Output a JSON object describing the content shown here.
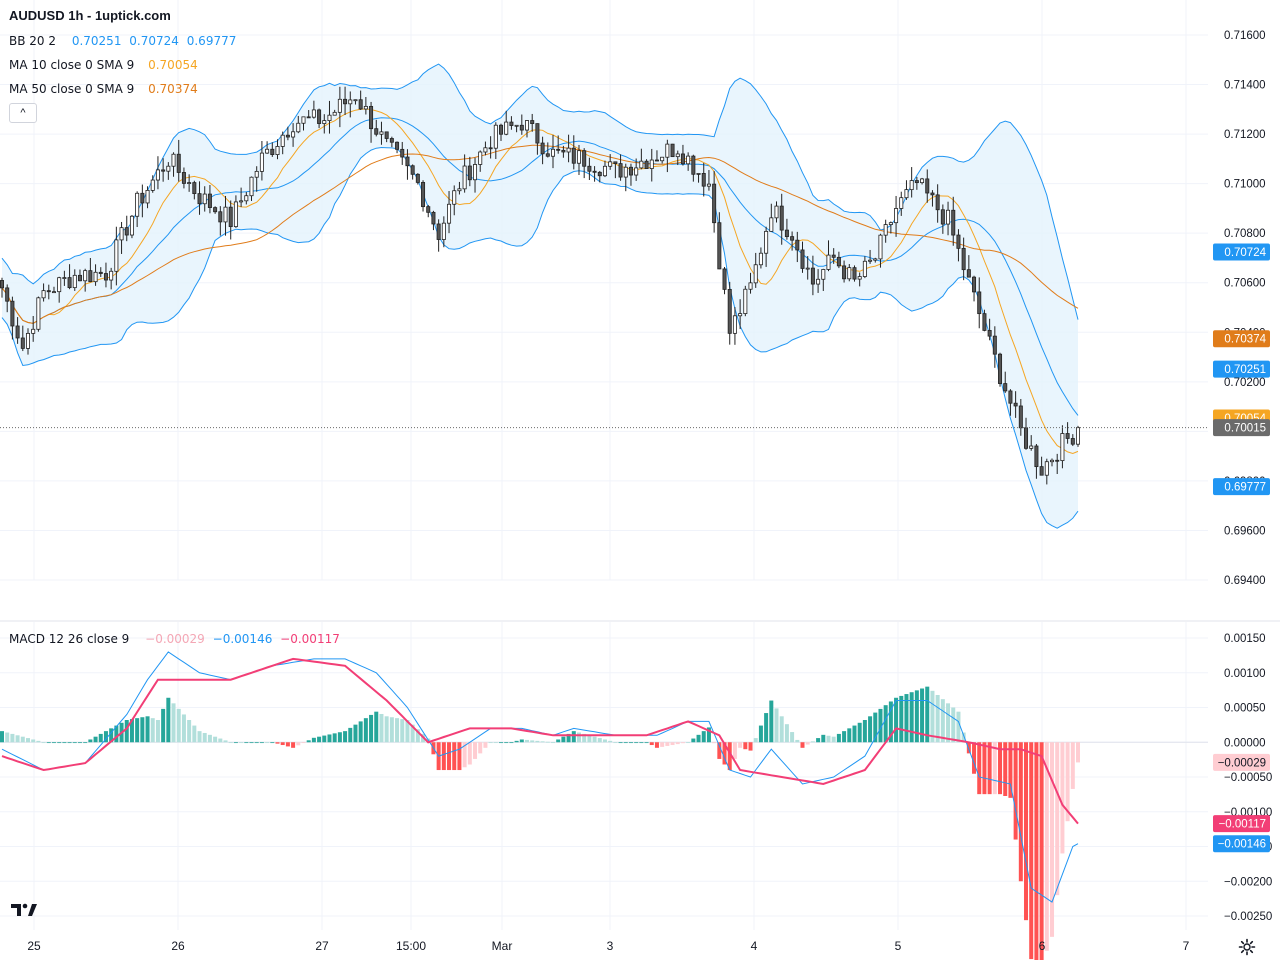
{
  "header": {
    "title": "AUDUSD 1h - 1uptick.com",
    "bb_label": "BB 20 2",
    "bb_values": [
      "0.70251",
      "0.70724",
      "0.69777"
    ],
    "ma10_label": "MA 10 close 0 SMA 9",
    "ma10_value": "0.70054",
    "ma50_label": "MA 50 close 0 SMA 9",
    "ma50_value": "0.70374",
    "collapse_glyph": "^"
  },
  "macd_legend": {
    "label": "MACD 12 26 close 9",
    "values": [
      "−0.00029",
      "−0.00146",
      "−0.00117"
    ]
  },
  "colors": {
    "bull": "#ffffff",
    "bear": "#555555",
    "wick": "#222222",
    "bb": "#2196f3",
    "bb_fill": "#e3f2fd",
    "ma10": "#f5a623",
    "ma50": "#e07c1a",
    "macd_line": "#2196f3",
    "signal_line": "#f23e76",
    "hist_up_strong": "#26a69a",
    "hist_up_weak": "#b2dfdb",
    "hist_dn_strong": "#ff5252",
    "hist_dn_weak": "#ffcdd2"
  },
  "icons": {
    "logo": "tradingview-logo-icon",
    "settings": "gear-icon",
    "collapse": "chevron-up-icon"
  },
  "chart_data": [
    {
      "type": "candlestick",
      "title": "AUDUSD 1h - 1uptick.com",
      "ylim": [
        0.693,
        0.7165
      ],
      "y_ticks": [
        "0.71600",
        "0.71400",
        "0.71200",
        "0.71000",
        "0.70800",
        "0.70600",
        "0.70400",
        "0.70200",
        "0.70000",
        "0.69800",
        "0.69600",
        "0.69400"
      ],
      "x_ticks": [
        "25",
        "26",
        "27",
        "15:00",
        "Mar",
        "3",
        "4",
        "5",
        "6",
        "7"
      ],
      "price_labels": [
        {
          "value": "0.70724",
          "price": 0.70724,
          "color": "#2196f3"
        },
        {
          "value": "0.70374",
          "price": 0.70374,
          "color": "#e07c1a"
        },
        {
          "value": "0.70251",
          "price": 0.70251,
          "color": "#2196f3"
        },
        {
          "value": "0.70054",
          "price": 0.70054,
          "color": "#f5a623"
        },
        {
          "value": "0.70015",
          "price": 0.70015,
          "color": "#6b6b6b"
        },
        {
          "value": "0.69777",
          "price": 0.69777,
          "color": "#2196f3"
        }
      ],
      "last_price": 0.70015,
      "bars": 208,
      "close_path": [
        [
          0,
          0.7058
        ],
        [
          4,
          0.7034
        ],
        [
          8,
          0.7056
        ],
        [
          14,
          0.7063
        ],
        [
          20,
          0.7064
        ],
        [
          26,
          0.7092
        ],
        [
          32,
          0.711
        ],
        [
          38,
          0.7095
        ],
        [
          44,
          0.7085
        ],
        [
          50,
          0.711
        ],
        [
          56,
          0.7125
        ],
        [
          62,
          0.7126
        ],
        [
          68,
          0.7136
        ],
        [
          74,
          0.7115
        ],
        [
          80,
          0.71
        ],
        [
          84,
          0.708
        ],
        [
          88,
          0.71
        ],
        [
          94,
          0.7118
        ],
        [
          100,
          0.7125
        ],
        [
          106,
          0.7112
        ],
        [
          112,
          0.711
        ],
        [
          118,
          0.7105
        ],
        [
          124,
          0.711
        ],
        [
          130,
          0.7115
        ],
        [
          136,
          0.71
        ],
        [
          140,
          0.704
        ],
        [
          144,
          0.7058
        ],
        [
          148,
          0.709
        ],
        [
          152,
          0.708
        ],
        [
          156,
          0.706
        ],
        [
          160,
          0.707
        ],
        [
          164,
          0.706
        ],
        [
          168,
          0.707
        ],
        [
          172,
          0.709
        ],
        [
          176,
          0.71
        ],
        [
          182,
          0.7085
        ],
        [
          186,
          0.706
        ],
        [
          190,
          0.7035
        ],
        [
          196,
          0.7
        ],
        [
          200,
          0.6985
        ],
        [
          204,
          0.6995
        ],
        [
          207,
          0.7001
        ]
      ]
    },
    {
      "type": "line",
      "title": "MACD 12 26 close 9",
      "ylim": [
        -0.0026,
        0.0017
      ],
      "y_ticks": [
        "0.00150",
        "0.00100",
        "0.00050",
        "0.00000",
        "−0.00050",
        "−0.00100",
        "−0.00150",
        "−0.00200",
        "−0.00250"
      ],
      "price_labels": [
        {
          "value": "−0.00029",
          "price": -0.00029,
          "color": "#ffcdd2",
          "text_color": "#131722"
        },
        {
          "value": "−0.00117",
          "price": -0.00117,
          "color": "#f23e76",
          "text_color": "#ffffff"
        },
        {
          "value": "−0.00146",
          "price": -0.00146,
          "color": "#2196f3",
          "text_color": "#ffffff"
        }
      ],
      "series": [
        {
          "name": "MACD",
          "points": [
            [
              0,
              -0.0001
            ],
            [
              8,
              -0.0004
            ],
            [
              16,
              -0.0003
            ],
            [
              24,
              0.0004
            ],
            [
              28,
              0.0009
            ],
            [
              32,
              0.0013
            ],
            [
              38,
              0.001
            ],
            [
              44,
              0.0009
            ],
            [
              52,
              0.0011
            ],
            [
              60,
              0.0012
            ],
            [
              66,
              0.0012
            ],
            [
              72,
              0.001
            ],
            [
              78,
              0.0005
            ],
            [
              84,
              -0.0002
            ],
            [
              88,
              -0.0001
            ],
            [
              94,
              0.0002
            ],
            [
              100,
              0.0002
            ],
            [
              106,
              0.0001
            ],
            [
              110,
              0.0002
            ],
            [
              118,
              0.0001
            ],
            [
              126,
              0.0001
            ],
            [
              132,
              0.0003
            ],
            [
              136,
              0.0003
            ],
            [
              140,
              -0.0004
            ],
            [
              144,
              -0.0005
            ],
            [
              148,
              -0.0001
            ],
            [
              154,
              -0.0006
            ],
            [
              160,
              -0.0005
            ],
            [
              166,
              -0.0002
            ],
            [
              172,
              0.0006
            ],
            [
              178,
              0.0006
            ],
            [
              184,
              0.0003
            ],
            [
              188,
              -0.0005
            ],
            [
              194,
              -0.0006
            ],
            [
              198,
              -0.0021
            ],
            [
              202,
              -0.0023
            ],
            [
              206,
              -0.0015
            ],
            [
              207,
              -0.00146
            ]
          ]
        },
        {
          "name": "Signal",
          "points": [
            [
              0,
              -0.0002
            ],
            [
              8,
              -0.0004
            ],
            [
              16,
              -0.0003
            ],
            [
              24,
              0.0002
            ],
            [
              30,
              0.0009
            ],
            [
              36,
              0.0009
            ],
            [
              44,
              0.0009
            ],
            [
              56,
              0.0012
            ],
            [
              66,
              0.0011
            ],
            [
              74,
              0.0006
            ],
            [
              82,
              0.0
            ],
            [
              90,
              0.0002
            ],
            [
              98,
              0.0002
            ],
            [
              106,
              0.0001
            ],
            [
              114,
              0.0001
            ],
            [
              124,
              0.0001
            ],
            [
              132,
              0.0003
            ],
            [
              138,
              0.0001
            ],
            [
              142,
              -0.0004
            ],
            [
              150,
              -0.0005
            ],
            [
              158,
              -0.0006
            ],
            [
              166,
              -0.0004
            ],
            [
              172,
              0.0002
            ],
            [
              178,
              0.0001
            ],
            [
              186,
              0.0
            ],
            [
              192,
              -0.0001
            ],
            [
              196,
              -0.0001
            ],
            [
              200,
              -0.0002
            ],
            [
              204,
              -0.0009
            ],
            [
              207,
              -0.00117
            ]
          ]
        }
      ],
      "histogram_last": -0.00029
    }
  ]
}
